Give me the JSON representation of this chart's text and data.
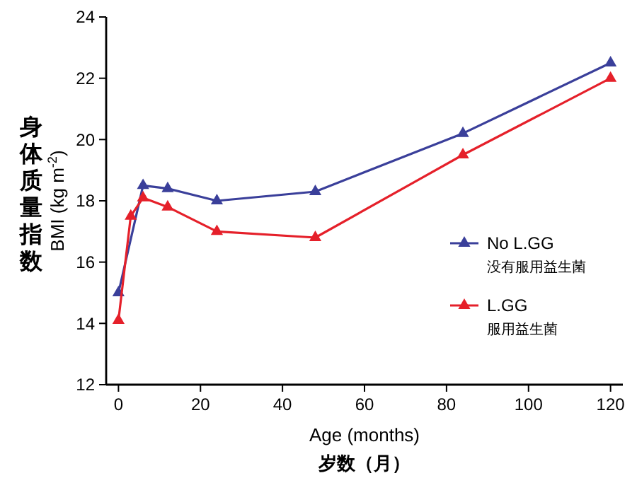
{
  "chart_data": {
    "type": "line",
    "xlabel": "Age (months)",
    "ylabel": "BMI (kg m$^{-2}$)",
    "xlim": [
      -3,
      123
    ],
    "xticks": [
      0,
      20,
      40,
      60,
      80,
      100,
      120
    ],
    "ylim": [
      12,
      24
    ],
    "yticks": [
      12,
      14,
      16,
      18,
      20,
      22,
      24
    ],
    "marker": "triangle",
    "legend": "right",
    "grid": false,
    "series": [
      {
        "name": "No L.GG",
        "color": "#3a3f9a",
        "x": [
          0,
          3,
          6,
          12,
          24,
          48,
          84,
          120
        ],
        "values": [
          15,
          null,
          18.5,
          18.4,
          18,
          18.3,
          20.2,
          22.5
        ]
      },
      {
        "name": "L.GG",
        "color": "#e5202a",
        "x": [
          0,
          3,
          6,
          12,
          24,
          48,
          84,
          120
        ],
        "values": [
          14.1,
          17.5,
          18.1,
          17.8,
          17,
          16.8,
          19.5,
          22
        ]
      }
    ],
    "annotations": [
      "身体质量指数",
      "岁数（月）",
      "没有服用益生菌",
      "服用益生菌"
    ]
  }
}
